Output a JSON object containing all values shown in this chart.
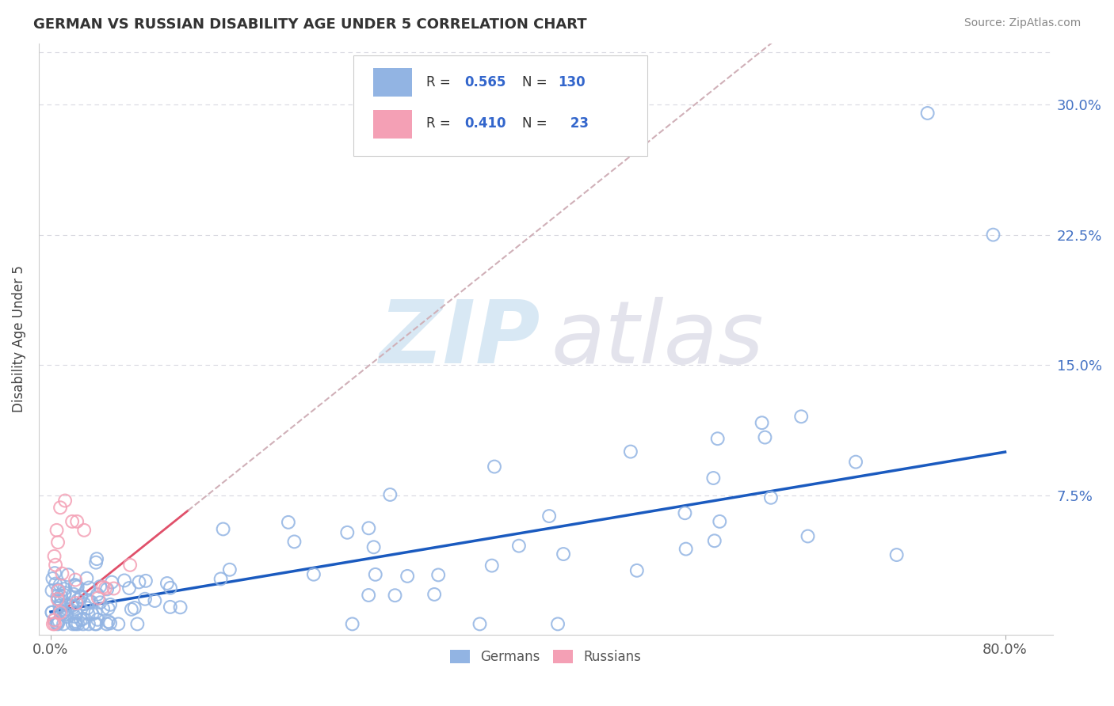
{
  "title": "GERMAN VS RUSSIAN DISABILITY AGE UNDER 5 CORRELATION CHART",
  "source": "Source: ZipAtlas.com",
  "ylabel": "Disability Age Under 5",
  "legend_R_german": "0.565",
  "legend_N_german": "130",
  "legend_R_russian": "0.410",
  "legend_N_russian": "23",
  "german_color": "#92b4e3",
  "russian_color": "#f4a0b5",
  "trend_german_color": "#1a5abf",
  "trend_russian_color": "#e0506a",
  "trend_dashed_color": "#d0b0b8",
  "watermark_zip_color": "#c8dff0",
  "watermark_atlas_color": "#d8d8e4",
  "background_color": "#ffffff",
  "grid_color": "#d8d8e0",
  "legend_text_color": "#333333",
  "legend_num_color": "#3366cc",
  "right_tick_color": "#4472c4",
  "title_color": "#333333",
  "source_color": "#888888",
  "xlim": [
    -0.01,
    0.84
  ],
  "ylim": [
    -0.005,
    0.335
  ],
  "yticks": [
    0.0,
    0.075,
    0.15,
    0.225,
    0.3
  ],
  "ytick_labels": [
    "",
    "7.5%",
    "15.0%",
    "22.5%",
    "30.0%"
  ],
  "slope_german": 0.115,
  "intercept_german": 0.008,
  "slope_russian": 0.55,
  "intercept_russian": 0.003,
  "russian_trend_solid_end": 0.115,
  "trend_dash_end": 0.8
}
